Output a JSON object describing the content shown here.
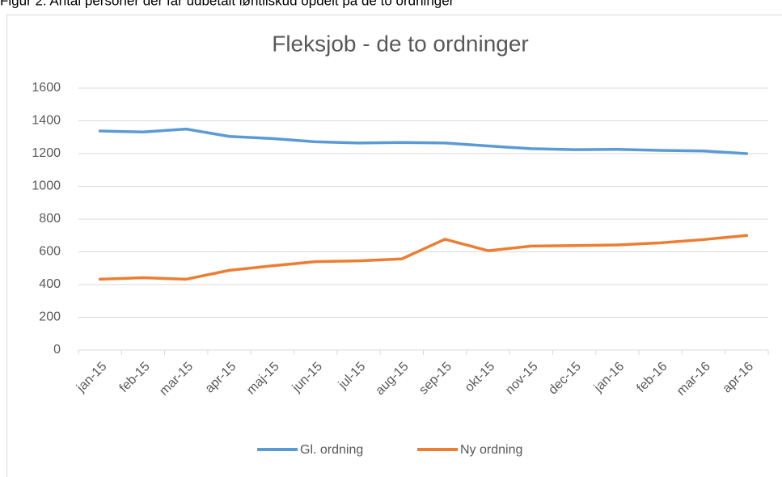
{
  "caption": "Figur 2. Antal personer der får udbetalt løntilskud opdelt på de to ordninger",
  "chart_data": {
    "type": "line",
    "title": "Fleksjob - de to ordninger",
    "categories": [
      "jan-15",
      "feb-15",
      "mar-15",
      "apr-15",
      "maj-15",
      "jun-15",
      "jul-15",
      "aug-15",
      "sep-15",
      "okt-15",
      "nov-15",
      "dec-15",
      "jan-16",
      "feb-16",
      "mar-16",
      "apr-16"
    ],
    "series": [
      {
        "name": "Gl. ordning",
        "color": "#5b9bd5",
        "values": [
          1338,
          1332,
          1350,
          1305,
          1292,
          1272,
          1265,
          1268,
          1265,
          1247,
          1230,
          1224,
          1226,
          1220,
          1216,
          1200
        ]
      },
      {
        "name": "Ny ordning",
        "color": "#ed7d31",
        "values": [
          433,
          442,
          433,
          487,
          515,
          540,
          545,
          557,
          677,
          607,
          635,
          638,
          642,
          655,
          675,
          700
        ]
      }
    ],
    "ylim": [
      0,
      1600
    ],
    "yticks": [
      0,
      200,
      400,
      600,
      800,
      1000,
      1200,
      1400,
      1600
    ],
    "grid": true,
    "legend": "bottom"
  }
}
